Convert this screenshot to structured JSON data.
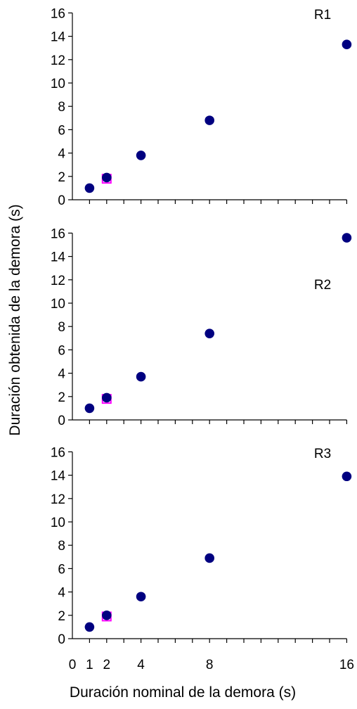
{
  "chart_data": {
    "type": "scatter",
    "xlabel": "Duración nominal de la demora (s)",
    "ylabel": "Duración obtenida de la demora (s)",
    "xlim": [
      0,
      16
    ],
    "ylim": [
      0,
      16
    ],
    "x_ticks": [
      0,
      1,
      2,
      4,
      8,
      16
    ],
    "x_tick_labels": [
      "0",
      "1",
      "2",
      "4",
      "8",
      "16"
    ],
    "y_ticks": [
      0,
      2,
      4,
      6,
      8,
      10,
      12,
      14,
      16
    ],
    "y_tick_labels": [
      "0",
      "2",
      "4",
      "6",
      "8",
      "10",
      "12",
      "14",
      "16"
    ],
    "marker_colors": {
      "circle": "#000080",
      "square": "#ff00ff"
    },
    "panels": [
      {
        "label": "R1",
        "series": [
          {
            "marker": "circle",
            "points": [
              [
                1,
                1.0
              ],
              [
                2,
                1.9
              ],
              [
                4,
                3.8
              ],
              [
                8,
                6.8
              ],
              [
                16,
                13.3
              ]
            ]
          },
          {
            "marker": "square",
            "points": [
              [
                2,
                1.8
              ]
            ]
          }
        ]
      },
      {
        "label": "R2",
        "series": [
          {
            "marker": "circle",
            "points": [
              [
                1,
                1.0
              ],
              [
                2,
                1.9
              ],
              [
                4,
                3.7
              ],
              [
                8,
                7.4
              ],
              [
                16,
                15.6
              ]
            ]
          },
          {
            "marker": "square",
            "points": [
              [
                2,
                1.8
              ]
            ]
          }
        ]
      },
      {
        "label": "R3",
        "series": [
          {
            "marker": "circle",
            "points": [
              [
                1,
                1.0
              ],
              [
                2,
                2.0
              ],
              [
                4,
                3.6
              ],
              [
                8,
                6.9
              ],
              [
                16,
                13.9
              ]
            ]
          },
          {
            "marker": "square",
            "points": [
              [
                2,
                1.9
              ]
            ]
          }
        ]
      }
    ]
  }
}
